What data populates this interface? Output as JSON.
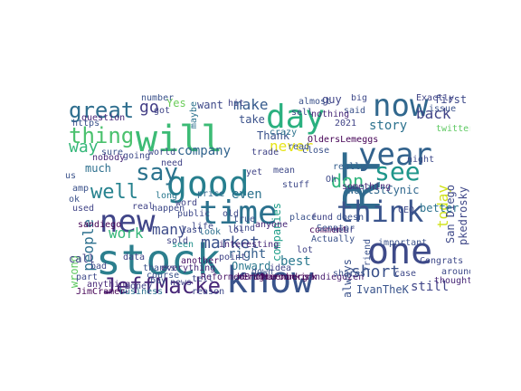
{
  "words": [
    {
      "text": "RT",
      "color": "#2f6b8e"
    },
    {
      "text": "stock",
      "color": "#2c7f8e"
    },
    {
      "text": "know",
      "color": "#3a548c"
    },
    {
      "text": "one",
      "color": "#3e4a89"
    },
    {
      "text": "will",
      "color": "#3cbb75"
    },
    {
      "text": "now",
      "color": "#31688e"
    },
    {
      "text": "year",
      "color": "#33638d"
    },
    {
      "text": "good",
      "color": "#277f8e"
    },
    {
      "text": "time",
      "color": "#2c728e"
    },
    {
      "text": "think",
      "color": "#3a548c"
    },
    {
      "text": "day",
      "color": "#2ab07f"
    },
    {
      "text": "new",
      "color": "#404588"
    },
    {
      "text": "see",
      "color": "#1f968b"
    },
    {
      "text": "say",
      "color": "#2c738e"
    },
    {
      "text": "JeffMacke",
      "color": "#482878"
    },
    {
      "text": "great",
      "color": "#2e6e8e"
    },
    {
      "text": "thing",
      "color": "#4ac16d"
    },
    {
      "text": "well",
      "color": "#26828e"
    },
    {
      "text": "market",
      "color": "#3b528b"
    },
    {
      "text": "short",
      "color": "#3b528b"
    },
    {
      "text": "people",
      "color": "#2d708e"
    },
    {
      "text": "don",
      "color": "#2fb47c"
    },
    {
      "text": "never",
      "color": "#e7e419"
    },
    {
      "text": "company",
      "color": "#32648e"
    },
    {
      "text": "make",
      "color": "#375b8d"
    },
    {
      "text": "back",
      "color": "#414487"
    },
    {
      "text": "today",
      "color": "#d0e11c"
    },
    {
      "text": "way",
      "color": "#35b779"
    },
    {
      "text": "go",
      "color": "#433e85"
    },
    {
      "text": "many",
      "color": "#3e4c8a"
    },
    {
      "text": "work",
      "color": "#35b779"
    },
    {
      "text": "WallStCynic",
      "color": "#31688e"
    },
    {
      "text": "always",
      "color": "#3b528b"
    },
    {
      "text": "still",
      "color": "#404588"
    },
    {
      "text": "right",
      "color": "#355f8d"
    },
    {
      "text": "best",
      "color": "#2a788e"
    },
    {
      "text": "even",
      "color": "#2c728e"
    },
    {
      "text": "San Diego",
      "color": "#3e4989"
    },
    {
      "text": "pkedrosky",
      "color": "#3f4889"
    },
    {
      "text": "IvanTheK",
      "color": "#3a548c"
    },
    {
      "text": "wrong",
      "color": "#5ec962"
    },
    {
      "text": "Onward",
      "color": "#2a788e"
    },
    {
      "text": "call",
      "color": "#414487"
    },
    {
      "text": "companies",
      "color": "#1f9e89"
    },
    {
      "text": "story",
      "color": "#2c728e"
    },
    {
      "text": "take",
      "color": "#3b528b"
    },
    {
      "text": "want",
      "color": "#3e4989"
    },
    {
      "text": "much",
      "color": "#2d708e"
    },
    {
      "text": "Yes",
      "color": "#6ccd5a"
    },
    {
      "text": "Thank",
      "color": "#3b528b"
    },
    {
      "text": "guy",
      "color": "#404588"
    },
    {
      "text": "going",
      "color": "#3e4989"
    },
    {
      "text": "question",
      "color": "#482878"
    },
    {
      "text": "look",
      "color": "#2d708e"
    },
    {
      "text": "Actually",
      "color": "#3b528b"
    },
    {
      "text": "interesting",
      "color": "#482878"
    },
    {
      "text": "price",
      "color": "#31688e"
    },
    {
      "text": "seen",
      "color": "#21918c"
    },
    {
      "text": "CEO",
      "color": "#3e4989"
    },
    {
      "text": "better",
      "color": "#2c728e"
    },
    {
      "text": "really",
      "color": "#355f8d"
    },
    {
      "text": "Oh",
      "color": "#3e4989"
    },
    {
      "text": "something",
      "color": "#482878"
    },
    {
      "text": "herbgreenberg",
      "color": "#440154"
    },
    {
      "text": "sandiegozen",
      "color": "#481d6f"
    },
    {
      "text": "long",
      "color": "#2a788e"
    },
    {
      "text": "big",
      "color": "#3e4989"
    },
    {
      "text": "said",
      "color": "#3b528b"
    },
    {
      "text": "crazy",
      "color": "#2c728e"
    },
    {
      "text": "first",
      "color": "#3e4989"
    },
    {
      "text": "important",
      "color": "#3b528b"
    },
    {
      "text": "twitter",
      "color": "#5ec962"
    },
    {
      "text": "another",
      "color": "#471365"
    },
    {
      "text": "sure",
      "color": "#3b528b"
    },
    {
      "text": "ve",
      "color": "#414487"
    },
    {
      "text": "https",
      "color": "#3b528b"
    },
    {
      "text": "nobody",
      "color": "#482878"
    },
    {
      "text": "business",
      "color": "#2c728e"
    },
    {
      "text": "reason",
      "color": "#3e4989"
    },
    {
      "text": "thought",
      "color": "#482878"
    },
    {
      "text": "maybe",
      "color": "#2c728e"
    },
    {
      "text": "place",
      "color": "#3b528b"
    },
    {
      "text": "anyone",
      "color": "#482878"
    },
    {
      "text": "world",
      "color": "#3e4989"
    },
    {
      "text": "comment",
      "color": "#440154"
    },
    {
      "text": "friend",
      "color": "#3b528b"
    },
    {
      "text": "course",
      "color": "#3b528b"
    },
    {
      "text": "around",
      "color": "#3e4989"
    },
    {
      "text": "everything",
      "color": "#482878"
    },
    {
      "text": "number",
      "color": "#3b528b"
    },
    {
      "text": "Exactly",
      "color": "#414487"
    },
    {
      "text": "nothing",
      "color": "#482878"
    },
    {
      "text": "public",
      "color": "#3e4989"
    },
    {
      "text": "amp",
      "color": "#3b528b"
    },
    {
      "text": "OldersLemeggs",
      "color": "#440154"
    },
    {
      "text": "JimCramer",
      "color": "#440154"
    },
    {
      "text": "MMaroonkirk",
      "color": "#440154"
    },
    {
      "text": "ReformedBroker",
      "color": "#481467"
    },
    {
      "text": "Congrats",
      "color": "#3e4989"
    },
    {
      "text": "almost",
      "color": "#3b528b"
    },
    {
      "text": "life",
      "color": "#3e4989"
    },
    {
      "text": "us",
      "color": "#3b528b"
    },
    {
      "text": "got",
      "color": "#404588"
    },
    {
      "text": "lot",
      "color": "#414487"
    },
    {
      "text": "part",
      "color": "#3e4989"
    },
    {
      "text": "read",
      "color": "#3b528b"
    },
    {
      "text": "word",
      "color": "#414487"
    },
    {
      "text": "need",
      "color": "#414487"
    },
    {
      "text": "issue",
      "color": "#3b528b"
    },
    {
      "text": "night",
      "color": "#3e4989"
    },
    {
      "text": "hit",
      "color": "#414487"
    },
    {
      "text": "2021",
      "color": "#414487"
    },
    {
      "text": "sell",
      "color": "#3e4989"
    },
    {
      "text": "yet",
      "color": "#414487"
    },
    {
      "text": "close",
      "color": "#3b528b"
    },
    {
      "text": "Senator",
      "color": "#3b528b"
    },
    {
      "text": "sold",
      "color": "#414487"
    },
    {
      "text": "stuff",
      "color": "#3e4989"
    },
    {
      "text": "hear",
      "color": "#414487"
    },
    {
      "text": "true",
      "color": "#3b528b"
    },
    {
      "text": "data",
      "color": "#414487"
    },
    {
      "text": "bad",
      "color": "#3e4989"
    },
    {
      "text": "money",
      "color": "#414487"
    },
    {
      "text": "down",
      "color": "#3b528b"
    },
    {
      "text": "sandiego",
      "color": "#440154"
    },
    {
      "text": "anything",
      "color": "#482878"
    },
    {
      "text": "kind",
      "color": "#3e4989"
    },
    {
      "text": "point",
      "color": "#414487"
    },
    {
      "text": "shares",
      "color": "#3b528b"
    },
    {
      "text": "news",
      "color": "#414487"
    },
    {
      "text": "tell",
      "color": "#3e4989"
    },
    {
      "text": "used",
      "color": "#414487"
    },
    {
      "text": "buy",
      "color": "#3b528b"
    },
    {
      "text": "case",
      "color": "#3e4989"
    },
    {
      "text": "idea",
      "color": "#414487"
    },
    {
      "text": "old",
      "color": "#3e4989"
    },
    {
      "text": "thanks",
      "color": "#3b528b"
    },
    {
      "text": "fund",
      "color": "#414487"
    },
    {
      "text": "mean",
      "color": "#3e4989"
    },
    {
      "text": "trade",
      "color": "#414487"
    },
    {
      "text": "doesn",
      "color": "#3b528b"
    },
    {
      "text": "happen",
      "color": "#3e4989"
    },
    {
      "text": "lol",
      "color": "#414487"
    },
    {
      "text": "ok",
      "color": "#3b528b"
    },
    {
      "text": "real",
      "color": "#414487"
    },
    {
      "text": "last",
      "color": "#3e4989"
    }
  ]
}
